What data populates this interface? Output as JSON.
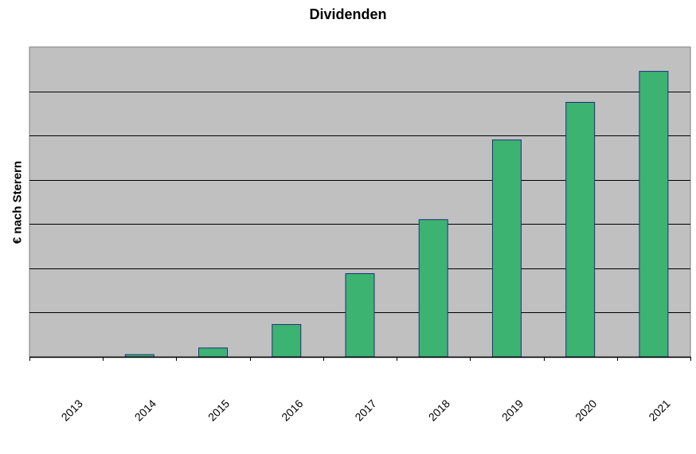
{
  "chart_data": {
    "type": "bar",
    "title": "Dividenden",
    "ylabel": "€ nach Sterern",
    "xlabel": "",
    "categories": [
      "2013",
      "2014",
      "2015",
      "2016",
      "2017",
      "2018",
      "2019",
      "2020",
      "2021"
    ],
    "values": [
      0,
      0.5,
      2,
      7.3,
      18.8,
      31,
      49,
      57.5,
      64.5
    ],
    "ylim": [
      0,
      70
    ],
    "grid": true,
    "legend": "none",
    "colors": {
      "plot_background": "#c0c0c0",
      "bar_fill": "#3cb371",
      "bar_stroke": "#1f2f80",
      "grid": "#000000"
    }
  }
}
